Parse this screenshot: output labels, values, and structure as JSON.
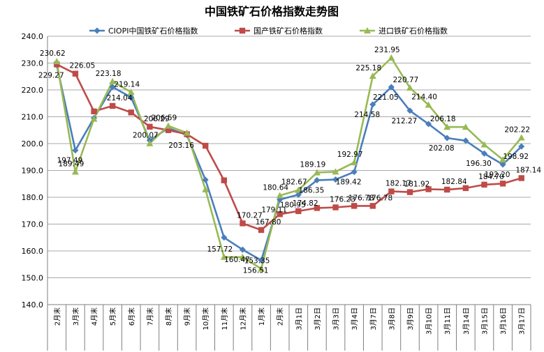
{
  "chart_data": {
    "type": "line",
    "title": "中国铁矿石价格指数走势图",
    "categories": [
      "2月末",
      "3月末",
      "4月末",
      "5月末",
      "6月末",
      "7月末",
      "8月末",
      "9月末",
      "10月末",
      "11月末",
      "12月末",
      "1月末",
      "2月末",
      "3月1日",
      "3月2日",
      "3月3日",
      "3月4日",
      "3月7日",
      "3月8日",
      "3月9日",
      "3月10日",
      "3月11日",
      "3月14日",
      "3月15日",
      "3月16日",
      "3月17日"
    ],
    "ylim": [
      140,
      240
    ],
    "yticks": [
      "140.0",
      "150.0",
      "160.0",
      "170.0",
      "180.0",
      "190.0",
      "200.0",
      "210.0",
      "220.0",
      "230.0",
      "240.0"
    ],
    "grid": true,
    "legend_position": "top",
    "series": [
      {
        "name": "CIOPI中国铁矿石价格指数",
        "color": "#4a7ebb",
        "marker": "diamond",
        "values": [
          229.27,
          197.49,
          209.5,
          221.1,
          217.2,
          201.2,
          205.8,
          203.16,
          186.5,
          165.0,
          160.47,
          156.51,
          179.11,
          180.95,
          186.35,
          186.6,
          189.42,
          214.58,
          221.05,
          212.27,
          207.3,
          202.08,
          201.1,
          196.3,
          192.2,
          198.92
        ],
        "labels": [
          "229.27",
          "197.49",
          "",
          "",
          "",
          "",
          "",
          "203.16",
          "",
          "",
          "160.47",
          "156.51",
          "179.11",
          "180.95",
          "186.35",
          "",
          "189.42",
          "214.58",
          "221.05",
          "212.27",
          "",
          "202.08",
          "",
          "196.30",
          "192.20",
          "198.92"
        ]
      },
      {
        "name": "国产铁矿石价格指数",
        "color": "#be4b48",
        "marker": "square",
        "values": [
          229.5,
          226.05,
          212.0,
          214.04,
          211.6,
          206.29,
          205.0,
          203.5,
          199.2,
          186.3,
          170.27,
          167.8,
          173.7,
          174.82,
          176.0,
          176.23,
          176.78,
          176.78,
          182.17,
          181.92,
          183.0,
          182.84,
          183.4,
          184.7,
          185.1,
          187.14
        ],
        "labels": [
          "",
          "226.05",
          "",
          "214.04",
          "",
          "206.29",
          "",
          "",
          "",
          "",
          "170.27",
          "167.80",
          "",
          "174.82",
          "",
          "176.23",
          "176.78",
          "176.78",
          "182.17",
          "181.92",
          "",
          "182.84",
          "",
          "184.70",
          "",
          "187.14"
        ]
      },
      {
        "name": "进口铁矿石价格指数",
        "color": "#98b954",
        "marker": "triangle",
        "values": [
          230.62,
          189.49,
          209.2,
          223.18,
          219.14,
          200.07,
          206.59,
          204.0,
          182.9,
          157.72,
          157.7,
          153.35,
          180.64,
          182.67,
          189.19,
          189.5,
          192.97,
          225.18,
          231.95,
          220.77,
          214.4,
          206.18,
          206.18,
          199.6,
          194.0,
          202.22
        ],
        "labels": [
          "230.62",
          "189.49",
          "",
          "223.18",
          "219.14",
          "200.07",
          "206.59",
          "",
          "",
          "157.72",
          "",
          "153.35",
          "180.64",
          "182.67",
          "189.19",
          "",
          "192.97",
          "225.18",
          "231.95",
          "220.77",
          "214.40",
          "206.18",
          "",
          "",
          "",
          "202.22"
        ]
      }
    ]
  }
}
